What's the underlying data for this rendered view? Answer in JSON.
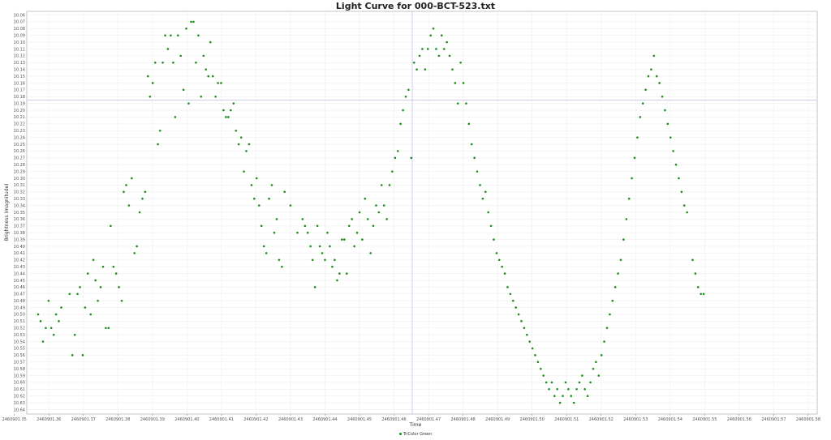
{
  "chart_data": {
    "type": "scatter",
    "title": "Light Curve for 000-BCT-523.txt",
    "xlabel": "Time",
    "ylabel": "Brightness (magnitude)",
    "xlim": [
      2460901.3536,
      2460901.5826
    ],
    "ylim": [
      10.06,
      10.645
    ],
    "y_inverted": true,
    "grid": true,
    "legend_position": "bottom-center",
    "x_ticks": [
      "2460901.35",
      "2460901.36",
      "2460901.37",
      "2460901.38",
      "2460901.39",
      "2460901.40",
      "2460901.41",
      "2460901.42",
      "2460901.43",
      "2460901.44",
      "2460901.45",
      "2460901.46",
      "2460901.47",
      "2460901.48",
      "2460901.49",
      "2460901.50",
      "2460901.51",
      "2460901.52",
      "2460901.53",
      "2460901.54",
      "2460901.55",
      "2460901.56",
      "2460901.57",
      "2460901.58"
    ],
    "y_ticks": [
      "10.06",
      "10.07",
      "10.08",
      "10.09",
      "10.10",
      "10.11",
      "10.12",
      "10.13",
      "10.14",
      "10.15",
      "10.16",
      "10.17",
      "10.18",
      "10.19",
      "10.20",
      "10.21",
      "10.22",
      "10.23",
      "10.24",
      "10.25",
      "10.26",
      "10.27",
      "10.28",
      "10.29",
      "10.30",
      "10.31",
      "10.32",
      "10.33",
      "10.34",
      "10.35",
      "10.36",
      "10.37",
      "10.38",
      "10.39",
      "10.40",
      "10.41",
      "10.42",
      "10.43",
      "10.44",
      "10.45",
      "10.46",
      "10.47",
      "10.48",
      "10.49",
      "10.50",
      "10.51",
      "10.52",
      "10.53",
      "10.54",
      "10.55",
      "10.56",
      "10.57",
      "10.58",
      "10.59",
      "10.60",
      "10.61",
      "10.62",
      "10.63",
      "10.64"
    ],
    "crosshair": {
      "x": 2460901.4653,
      "y": 10.185
    },
    "series": [
      {
        "name": "TriColor Green",
        "color": "#1e8c1e",
        "points": [
          [
            2460901.3569,
            10.5
          ],
          [
            2460901.3576,
            10.51
          ],
          [
            2460901.3583,
            10.54
          ],
          [
            2460901.3591,
            10.52
          ],
          [
            2460901.3599,
            10.48
          ],
          [
            2460901.3607,
            10.52
          ],
          [
            2460901.3614,
            10.53
          ],
          [
            2460901.3621,
            10.5
          ],
          [
            2460901.3629,
            10.51
          ],
          [
            2460901.3636,
            10.49
          ],
          [
            2460901.366,
            10.47
          ],
          [
            2460901.3668,
            10.56
          ],
          [
            2460901.3675,
            10.53
          ],
          [
            2460901.3683,
            10.47
          ],
          [
            2460901.369,
            10.46
          ],
          [
            2460901.3698,
            10.56
          ],
          [
            2460901.3705,
            10.49
          ],
          [
            2460901.3713,
            10.44
          ],
          [
            2460901.3721,
            10.5
          ],
          [
            2460901.3729,
            10.42
          ],
          [
            2460901.3735,
            10.45
          ],
          [
            2460901.3742,
            10.48
          ],
          [
            2460901.375,
            10.46
          ],
          [
            2460901.3757,
            10.43
          ],
          [
            2460901.3765,
            10.52
          ],
          [
            2460901.3773,
            10.52
          ],
          [
            2460901.3779,
            10.37
          ],
          [
            2460901.3787,
            10.43
          ],
          [
            2460901.3795,
            10.44
          ],
          [
            2460901.3803,
            10.46
          ],
          [
            2460901.3811,
            10.48
          ],
          [
            2460901.3817,
            10.32
          ],
          [
            2460901.3824,
            10.31
          ],
          [
            2460901.3832,
            10.34
          ],
          [
            2460901.384,
            10.3
          ],
          [
            2460901.3848,
            10.41
          ],
          [
            2460901.3855,
            10.4
          ],
          [
            2460901.3863,
            10.35
          ],
          [
            2460901.3871,
            10.33
          ],
          [
            2460901.3879,
            10.32
          ],
          [
            2460901.3887,
            10.15
          ],
          [
            2460901.3893,
            10.18
          ],
          [
            2460901.3901,
            10.16
          ],
          [
            2460901.3908,
            10.13
          ],
          [
            2460901.3916,
            10.25
          ],
          [
            2460901.3922,
            10.23
          ],
          [
            2460901.393,
            10.13
          ],
          [
            2460901.3937,
            10.09
          ],
          [
            2460901.3945,
            10.11
          ],
          [
            2460901.3953,
            10.09
          ],
          [
            2460901.396,
            10.13
          ],
          [
            2460901.3966,
            10.21
          ],
          [
            2460901.3974,
            10.09
          ],
          [
            2460901.3982,
            10.12
          ],
          [
            2460901.399,
            10.17
          ],
          [
            2460901.3998,
            10.08
          ],
          [
            2460901.4005,
            10.19
          ],
          [
            2460901.4012,
            10.07
          ],
          [
            2460901.4019,
            10.07
          ],
          [
            2460901.4026,
            10.13
          ],
          [
            2460901.4033,
            10.09
          ],
          [
            2460901.4041,
            10.18
          ],
          [
            2460901.4048,
            10.12
          ],
          [
            2460901.4055,
            10.14
          ],
          [
            2460901.4062,
            10.15
          ],
          [
            2460901.4068,
            10.1
          ],
          [
            2460901.4075,
            10.15
          ],
          [
            2460901.4083,
            10.18
          ],
          [
            2460901.409,
            10.16
          ],
          [
            2460901.4099,
            10.16
          ],
          [
            2460901.4106,
            10.2
          ],
          [
            2460901.4113,
            10.21
          ],
          [
            2460901.412,
            10.21
          ],
          [
            2460901.4127,
            10.2
          ],
          [
            2460901.4135,
            10.19
          ],
          [
            2460901.4142,
            10.23
          ],
          [
            2460901.415,
            10.25
          ],
          [
            2460901.4157,
            10.24
          ],
          [
            2460901.4165,
            10.29
          ],
          [
            2460901.4172,
            10.26
          ],
          [
            2460901.418,
            10.25
          ],
          [
            2460901.4187,
            10.31
          ],
          [
            2460901.4195,
            10.33
          ],
          [
            2460901.4202,
            10.3
          ],
          [
            2460901.4209,
            10.34
          ],
          [
            2460901.4216,
            10.37
          ],
          [
            2460901.4223,
            10.4
          ],
          [
            2460901.423,
            10.41
          ],
          [
            2460901.4238,
            10.33
          ],
          [
            2460901.4246,
            10.31
          ],
          [
            2460901.4253,
            10.38
          ],
          [
            2460901.426,
            10.36
          ],
          [
            2460901.4267,
            10.42
          ],
          [
            2460901.4275,
            10.43
          ],
          [
            2460901.4283,
            10.32
          ],
          [
            2460901.43,
            10.34
          ],
          [
            2460901.432,
            10.38
          ],
          [
            2460901.4335,
            10.36
          ],
          [
            2460901.4342,
            10.37
          ],
          [
            2460901.435,
            10.38
          ],
          [
            2460901.4358,
            10.4
          ],
          [
            2460901.4364,
            10.42
          ],
          [
            2460901.4371,
            10.46
          ],
          [
            2460901.4378,
            10.37
          ],
          [
            2460901.4385,
            10.4
          ],
          [
            2460901.4392,
            10.41
          ],
          [
            2460901.44,
            10.42
          ],
          [
            2460901.4407,
            10.38
          ],
          [
            2460901.4414,
            10.4
          ],
          [
            2460901.4421,
            10.43
          ],
          [
            2460901.4428,
            10.42
          ],
          [
            2460901.4435,
            10.45
          ],
          [
            2460901.4442,
            10.44
          ],
          [
            2460901.4449,
            10.39
          ],
          [
            2460901.4456,
            10.39
          ],
          [
            2460901.4463,
            10.44
          ],
          [
            2460901.447,
            10.37
          ],
          [
            2460901.4478,
            10.36
          ],
          [
            2460901.4485,
            10.4
          ],
          [
            2460901.4493,
            10.38
          ],
          [
            2460901.45,
            10.35
          ],
          [
            2460901.4508,
            10.39
          ],
          [
            2460901.4516,
            10.33
          ],
          [
            2460901.4524,
            10.36
          ],
          [
            2460901.4532,
            10.41
          ],
          [
            2460901.454,
            10.37
          ],
          [
            2460901.4548,
            10.34
          ],
          [
            2460901.4556,
            10.35
          ],
          [
            2460901.4564,
            10.31
          ],
          [
            2460901.4571,
            10.34
          ],
          [
            2460901.4579,
            10.36
          ],
          [
            2460901.4587,
            10.31
          ],
          [
            2460901.4595,
            10.29
          ],
          [
            2460901.4603,
            10.27
          ],
          [
            2460901.4611,
            10.26
          ],
          [
            2460901.4619,
            10.22
          ],
          [
            2460901.4626,
            10.2
          ],
          [
            2460901.4634,
            10.18
          ],
          [
            2460901.4642,
            10.17
          ],
          [
            2460901.465,
            10.27
          ],
          [
            2460901.4658,
            10.13
          ],
          [
            2460901.4666,
            10.14
          ],
          [
            2460901.4674,
            10.12
          ],
          [
            2460901.4682,
            10.11
          ],
          [
            2460901.469,
            10.14
          ],
          [
            2460901.4698,
            10.11
          ],
          [
            2460901.4706,
            10.09
          ],
          [
            2460901.4714,
            10.08
          ],
          [
            2460901.4722,
            10.11
          ],
          [
            2460901.473,
            10.12
          ],
          [
            2460901.4738,
            10.09
          ],
          [
            2460901.4745,
            10.11
          ],
          [
            2460901.4753,
            10.1
          ],
          [
            2460901.4761,
            10.12
          ],
          [
            2460901.4769,
            10.14
          ],
          [
            2460901.4777,
            10.16
          ],
          [
            2460901.4785,
            10.19
          ],
          [
            2460901.4793,
            10.13
          ],
          [
            2460901.4801,
            10.16
          ],
          [
            2460901.4809,
            10.19
          ],
          [
            2460901.4817,
            10.22
          ],
          [
            2460901.4825,
            10.25
          ],
          [
            2460901.4833,
            10.27
          ],
          [
            2460901.4841,
            10.29
          ],
          [
            2460901.4849,
            10.31
          ],
          [
            2460901.4857,
            10.33
          ],
          [
            2460901.4865,
            10.32
          ],
          [
            2460901.4873,
            10.35
          ],
          [
            2460901.4881,
            10.37
          ],
          [
            2460901.4889,
            10.39
          ],
          [
            2460901.4897,
            10.41
          ],
          [
            2460901.4905,
            10.42
          ],
          [
            2460901.4913,
            10.43
          ],
          [
            2460901.4921,
            10.44
          ],
          [
            2460901.4929,
            10.46
          ],
          [
            2460901.4937,
            10.47
          ],
          [
            2460901.4945,
            10.48
          ],
          [
            2460901.4953,
            10.49
          ],
          [
            2460901.4961,
            10.5
          ],
          [
            2460901.4969,
            10.51
          ],
          [
            2460901.4977,
            10.52
          ],
          [
            2460901.4985,
            10.53
          ],
          [
            2460901.4993,
            10.54
          ],
          [
            2460901.5001,
            10.55
          ],
          [
            2460901.5009,
            10.56
          ],
          [
            2460901.5017,
            10.57
          ],
          [
            2460901.5025,
            10.58
          ],
          [
            2460901.5033,
            10.59
          ],
          [
            2460901.5041,
            10.6
          ],
          [
            2460901.5049,
            10.61
          ],
          [
            2460901.5057,
            10.6
          ],
          [
            2460901.5065,
            10.62
          ],
          [
            2460901.5073,
            10.61
          ],
          [
            2460901.5081,
            10.63
          ],
          [
            2460901.5089,
            10.62
          ],
          [
            2460901.5097,
            10.6
          ],
          [
            2460901.5105,
            10.61
          ],
          [
            2460901.5113,
            10.62
          ],
          [
            2460901.5121,
            10.63
          ],
          [
            2460901.5129,
            10.61
          ],
          [
            2460901.5137,
            10.6
          ],
          [
            2460901.5145,
            10.59
          ],
          [
            2460901.5153,
            10.61
          ],
          [
            2460901.5161,
            10.62
          ],
          [
            2460901.5169,
            10.6
          ],
          [
            2460901.5177,
            10.58
          ],
          [
            2460901.5185,
            10.57
          ],
          [
            2460901.5193,
            10.59
          ],
          [
            2460901.5201,
            10.56
          ],
          [
            2460901.5209,
            10.54
          ],
          [
            2460901.5217,
            10.52
          ],
          [
            2460901.5225,
            10.5
          ],
          [
            2460901.5233,
            10.48
          ],
          [
            2460901.5241,
            10.46
          ],
          [
            2460901.5249,
            10.44
          ],
          [
            2460901.5257,
            10.42
          ],
          [
            2460901.5265,
            10.39
          ],
          [
            2460901.5273,
            10.36
          ],
          [
            2460901.5281,
            10.33
          ],
          [
            2460901.5289,
            10.3
          ],
          [
            2460901.5297,
            10.27
          ],
          [
            2460901.5305,
            10.24
          ],
          [
            2460901.5313,
            10.21
          ],
          [
            2460901.5321,
            10.19
          ],
          [
            2460901.5329,
            10.17
          ],
          [
            2460901.5337,
            10.15
          ],
          [
            2460901.5345,
            10.14
          ],
          [
            2460901.5353,
            10.12
          ],
          [
            2460901.5361,
            10.15
          ],
          [
            2460901.5369,
            10.16
          ],
          [
            2460901.5377,
            10.18
          ],
          [
            2460901.5385,
            10.2
          ],
          [
            2460901.5393,
            10.22
          ],
          [
            2460901.5401,
            10.24
          ],
          [
            2460901.5409,
            10.26
          ],
          [
            2460901.5417,
            10.28
          ],
          [
            2460901.5425,
            10.3
          ],
          [
            2460901.5433,
            10.32
          ],
          [
            2460901.5441,
            10.34
          ],
          [
            2460901.5449,
            10.35
          ],
          [
            2460901.5465,
            10.42
          ],
          [
            2460901.5473,
            10.44
          ],
          [
            2460901.5481,
            10.46
          ],
          [
            2460901.5489,
            10.47
          ],
          [
            2460901.5497,
            10.47
          ]
        ]
      }
    ]
  }
}
